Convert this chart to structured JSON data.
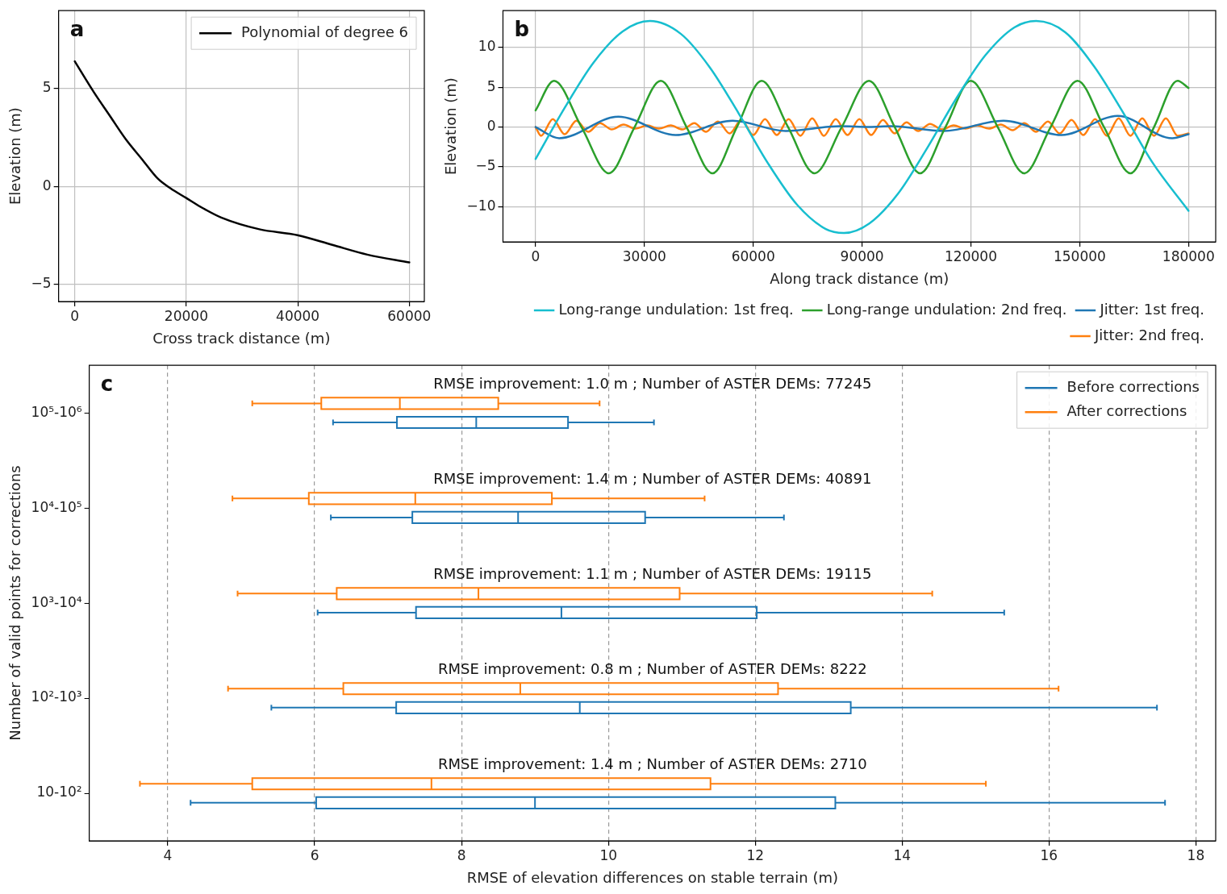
{
  "chart_data": [
    {
      "type": "line",
      "xlabel": "Cross track distance (m)",
      "ylabel": "Elevation (m)",
      "annotations": [
        "a"
      ],
      "legend": "top right",
      "grid": true,
      "xlim": [
        -2900,
        62700
      ],
      "xticks": [
        0,
        20000,
        40000,
        60000
      ],
      "ylim": [
        -5.9,
        9.0
      ],
      "yticks": [
        -5,
        0,
        5
      ],
      "series": [
        {
          "name": "Polynomial of degree 6",
          "color": "#000000",
          "x": [
            0,
            3470,
            6320,
            9180,
            12020,
            14870,
            17150,
            20000,
            22850,
            26270,
            33100,
            39950,
            46200,
            52480,
            60000
          ],
          "values": [
            6.4,
            4.8,
            3.6,
            2.4,
            1.4,
            0.4,
            -0.1,
            -0.6,
            -1.1,
            -1.6,
            -2.2,
            -2.5,
            -3.0,
            -3.5,
            -3.9
          ]
        }
      ]
    },
    {
      "type": "line",
      "xlabel": "Along track distance (m)",
      "ylabel": "Elevation (m)",
      "annotations": [
        "b"
      ],
      "legend": "bottom",
      "grid": true,
      "xlim": [
        -9000,
        187500
      ],
      "xticks": [
        0,
        30000,
        60000,
        90000,
        120000,
        150000,
        180000
      ],
      "ylim": [
        -14.4,
        14.6
      ],
      "yticks": [
        -10,
        -5,
        0,
        5,
        10
      ],
      "series": [
        {
          "name": "Long-range undulation: 1st freq.",
          "color": "#17becf",
          "x": [
            0,
            8000,
            16000,
            24000,
            31500,
            40000,
            48000,
            56000,
            64000,
            72000,
            80000,
            85000,
            92000,
            100000,
            108000,
            116000,
            124000,
            132000,
            138000,
            146000,
            154000,
            162000,
            170000,
            180000
          ],
          "values": [
            -4.0,
            2.4,
            8.1,
            12.0,
            13.3,
            11.7,
            7.5,
            1.7,
            -4.5,
            -9.7,
            -12.8,
            -13.3,
            -12.1,
            -8.3,
            -2.6,
            3.6,
            9.0,
            12.5,
            13.3,
            11.9,
            7.6,
            1.8,
            -4.4,
            -10.5
          ]
        },
        {
          "name": "Long-range undulation: 2nd freq.",
          "color": "#2ca02c",
          "x": [
            0,
            5100,
            12650,
            20200,
            27300,
            34500,
            41600,
            48800,
            55500,
            62300,
            69600,
            76900,
            84400,
            91900,
            99000,
            106000,
            113000,
            120000,
            127400,
            134700,
            142000,
            149400,
            156700,
            164000,
            170500,
            177000,
            180000
          ],
          "values": [
            2.1,
            5.8,
            0,
            -5.8,
            0,
            5.8,
            0,
            -5.8,
            0,
            5.8,
            0,
            -5.8,
            0,
            5.8,
            0,
            -5.8,
            0,
            5.8,
            0,
            -5.8,
            0,
            5.8,
            0,
            -5.8,
            0,
            5.8,
            4.9
          ]
        },
        {
          "name": "Jitter: 1st freq.",
          "color": "#1f77b4",
          "x": [
            0,
            6500,
            22800,
            38600,
            54300,
            69000,
            84000,
            92000,
            98000,
            112500,
            129000,
            145000,
            160500,
            175500,
            180000
          ],
          "values": [
            0,
            -1.4,
            1.3,
            -1.0,
            0.8,
            -0.5,
            0.1,
            0,
            0.1,
            -0.5,
            0.8,
            -1.0,
            1.4,
            -1.4,
            -0.9
          ]
        },
        {
          "name": "Jitter: 2nd freq.",
          "color": "#ff7f0e",
          "x": [
            0,
            1500,
            4750,
            8000,
            11250,
            14500,
            17750,
            21000,
            24250,
            27500,
            30750,
            34000,
            37250,
            40500,
            43750,
            47000,
            50250,
            53500,
            56750,
            60000,
            63250,
            66500,
            69750,
            73000,
            76250,
            79500,
            82750,
            86000,
            89250,
            92500,
            95750,
            99000,
            102250,
            105500,
            108750,
            112000,
            115250,
            118500,
            121750,
            125000,
            128250,
            131500,
            134750,
            138000,
            141250,
            144500,
            147750,
            151000,
            154250,
            157500,
            160750,
            164000,
            167250,
            170500,
            173750,
            177000,
            180000
          ],
          "values": [
            0,
            -1.1,
            1.0,
            -0.9,
            0.8,
            -0.6,
            0.5,
            -0.3,
            0.3,
            -0.2,
            0.2,
            -0.2,
            0.2,
            -0.3,
            0.5,
            -0.6,
            0.7,
            -0.8,
            0.9,
            -1.0,
            1.0,
            -1.0,
            1.0,
            -1.1,
            1.1,
            -1.1,
            1.0,
            -1.0,
            1.0,
            -1.0,
            0.9,
            -0.8,
            0.6,
            -0.5,
            0.4,
            -0.3,
            0.2,
            -0.2,
            0.2,
            -0.2,
            0.3,
            -0.4,
            0.5,
            -0.6,
            0.7,
            -0.8,
            0.9,
            -1.0,
            1.0,
            -1.1,
            1.1,
            -1.1,
            1.1,
            -1.1,
            1.1,
            -1.1,
            -0.8
          ]
        }
      ]
    },
    {
      "type": "box",
      "orientation": "horizontal",
      "xlabel": "RMSE of elevation differences on stable terrain (m)",
      "ylabel": "Number of valid points for corrections",
      "legend": "top right",
      "grid": "x",
      "categories": [
        "10⁵-10⁶",
        "10⁴-10⁵",
        "10³-10⁴",
        "10²-10³",
        "10-10²"
      ],
      "xlim": [
        2.93,
        18.27
      ],
      "xticks": [
        4,
        6,
        8,
        10,
        12,
        14,
        16,
        18
      ],
      "annotations": [
        "c",
        "RMSE improvement: 1.0 m ; Number of ASTER DEMs: 77245",
        "RMSE improvement: 1.4 m ; Number of ASTER DEMs: 40891",
        "RMSE improvement: 1.1 m ; Number of ASTER DEMs: 19115",
        "RMSE improvement: 0.8 m ; Number of ASTER DEMs: 8222",
        "RMSE improvement: 1.4 m ; Number of ASTER DEMs: 2710"
      ],
      "series": [
        {
          "name": "After corrections",
          "color": "#ff7f0e",
          "boxes": [
            {
              "low": 5.15,
              "q1": 6.09,
              "median": 7.16,
              "q3": 8.5,
              "high": 9.88
            },
            {
              "low": 4.88,
              "q1": 5.92,
              "median": 7.37,
              "q3": 9.23,
              "high": 11.31
            },
            {
              "low": 4.95,
              "q1": 6.3,
              "median": 8.23,
              "q3": 10.97,
              "high": 14.41
            },
            {
              "low": 4.82,
              "q1": 6.39,
              "median": 8.8,
              "q3": 12.31,
              "high": 16.13
            },
            {
              "low": 3.62,
              "q1": 5.15,
              "median": 7.59,
              "q3": 11.39,
              "high": 15.14
            }
          ]
        },
        {
          "name": "Before corrections",
          "color": "#1f77b4",
          "boxes": [
            {
              "low": 6.25,
              "q1": 7.12,
              "median": 8.2,
              "q3": 9.45,
              "high": 10.62
            },
            {
              "low": 6.22,
              "q1": 7.33,
              "median": 8.77,
              "q3": 10.5,
              "high": 12.39
            },
            {
              "low": 6.04,
              "q1": 7.38,
              "median": 9.36,
              "q3": 12.02,
              "high": 15.39
            },
            {
              "low": 5.41,
              "q1": 7.11,
              "median": 9.61,
              "q3": 13.3,
              "high": 17.47
            },
            {
              "low": 4.31,
              "q1": 6.02,
              "median": 9.0,
              "q3": 13.09,
              "high": 17.58
            }
          ]
        }
      ]
    }
  ]
}
